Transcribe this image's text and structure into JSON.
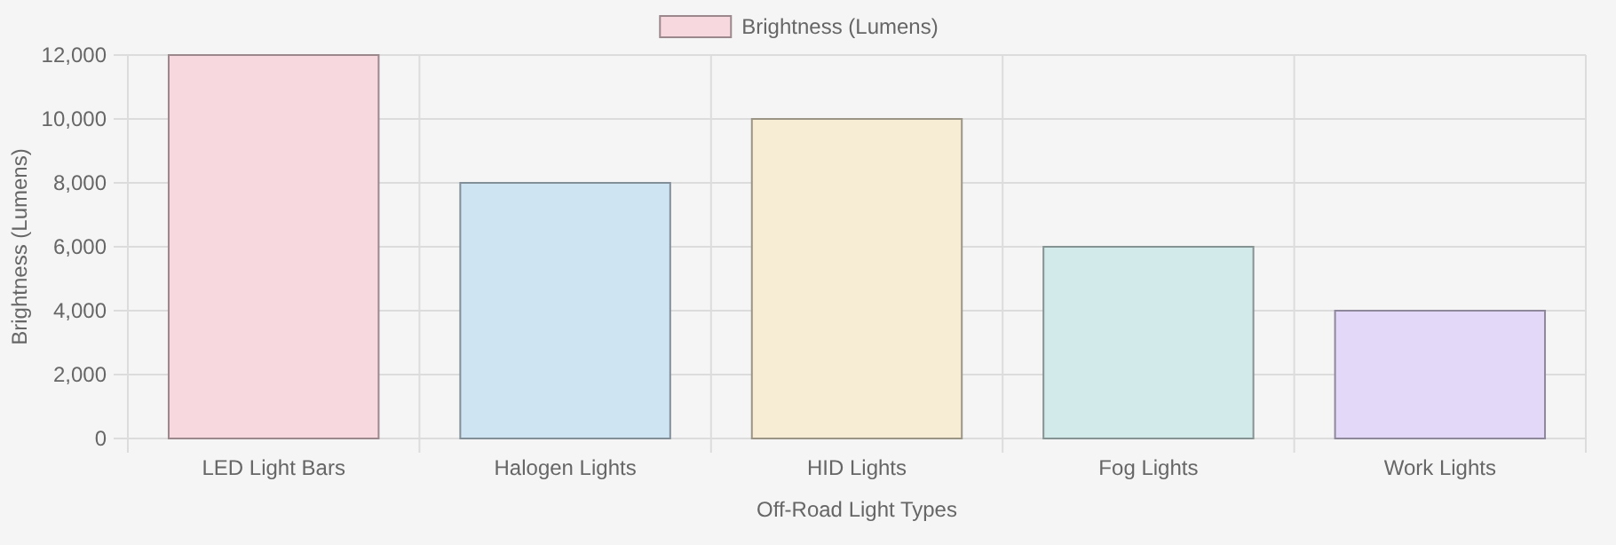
{
  "chart_data": {
    "type": "bar",
    "xlabel": "Off-Road Light Types",
    "ylabel": "Brightness (Lumens)",
    "categories": [
      "LED Light Bars",
      "Halogen Lights",
      "HID Lights",
      "Fog Lights",
      "Work Lights"
    ],
    "series": [
      {
        "name": "Brightness (Lumens)",
        "color": "#f7d8de",
        "colors": [
          "#f7d8de",
          "#cfe4f3",
          "#f7edd5",
          "#d3eaea",
          "#e3d8f7"
        ],
        "values": [
          12000,
          8000,
          10000,
          6000,
          4000
        ]
      }
    ],
    "ylim": [
      0,
      12000
    ],
    "yticks": [
      {
        "value": 0,
        "label": "0"
      },
      {
        "value": 2000,
        "label": "2,000"
      },
      {
        "value": 4000,
        "label": "4,000"
      },
      {
        "value": 6000,
        "label": "6,000"
      },
      {
        "value": 8000,
        "label": "8,000"
      },
      {
        "value": 10000,
        "label": "10,000"
      },
      {
        "value": 12000,
        "label": "12,000"
      }
    ],
    "grid": true,
    "legend": "top"
  }
}
